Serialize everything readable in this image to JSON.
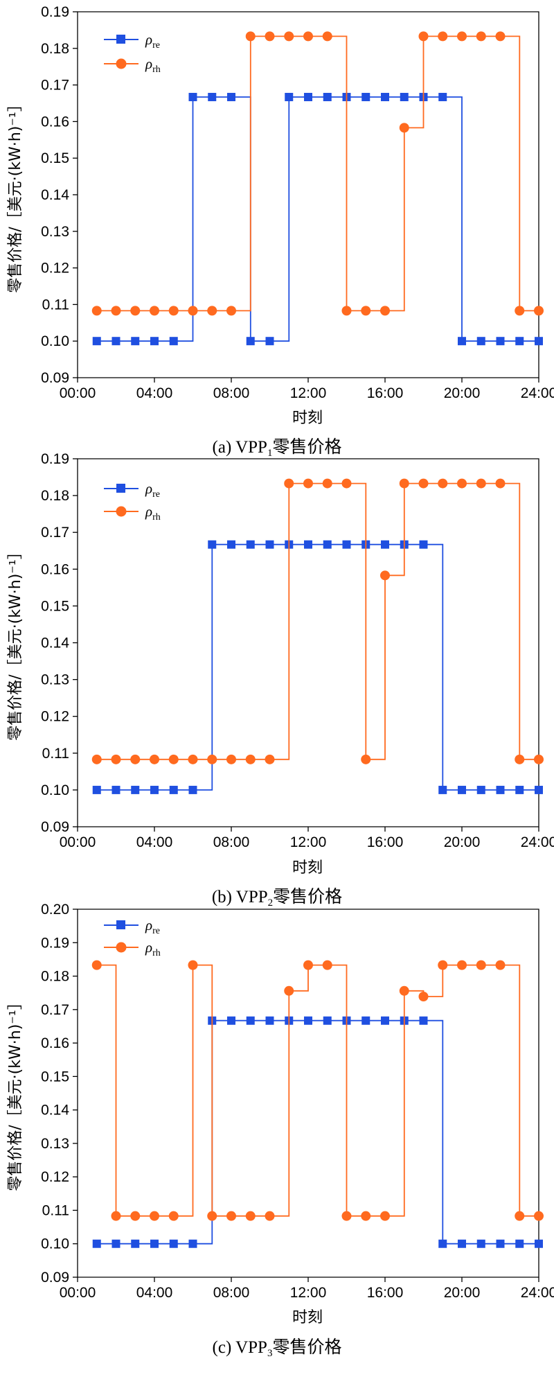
{
  "chart_data": [
    {
      "type": "line",
      "step": true,
      "caption": "(a) VPP",
      "caption_sub": "1",
      "caption_suffix": "零售价格",
      "xlabel": "时刻",
      "ylabel": "零售价格/［美元·(kW·h)⁻¹］",
      "xlim": [
        0,
        24
      ],
      "ylim": [
        0.09,
        0.19
      ],
      "x_ticks": [
        0,
        4,
        8,
        12,
        16,
        20,
        24
      ],
      "x_tick_labels": [
        "00:00",
        "04:00",
        "08:00",
        "12:00",
        "16:00",
        "20:00",
        "24:00"
      ],
      "y_ticks": [
        0.09,
        0.1,
        0.11,
        0.12,
        0.13,
        0.14,
        0.15,
        0.16,
        0.17,
        0.18,
        0.19
      ],
      "y_tick_labels": [
        "0.09",
        "0.10",
        "0.11",
        "0.12",
        "0.13",
        "0.14",
        "0.15",
        "0.16",
        "0.17",
        "0.18",
        "0.19"
      ],
      "x": [
        1,
        2,
        3,
        4,
        5,
        6,
        7,
        8,
        9,
        10,
        11,
        12,
        13,
        14,
        15,
        16,
        17,
        18,
        19,
        20,
        21,
        22,
        23,
        24
      ],
      "series": [
        {
          "name": "ρre",
          "symbol": "ρ",
          "sub": "re",
          "color": "#1f4fe0",
          "marker": "square",
          "values": [
            0.1,
            0.1,
            0.1,
            0.1,
            0.1,
            0.1667,
            0.1667,
            0.1667,
            0.1,
            0.1,
            0.1667,
            0.1667,
            0.1667,
            0.1667,
            0.1667,
            0.1667,
            0.1667,
            0.1667,
            0.1667,
            0.1,
            0.1,
            0.1,
            0.1,
            0.1
          ]
        },
        {
          "name": "ρrh",
          "symbol": "ρ",
          "sub": "rh",
          "color": "#ff6a1f",
          "marker": "circle",
          "values": [
            0.1083,
            0.1083,
            0.1083,
            0.1083,
            0.1083,
            0.1083,
            0.1083,
            0.1083,
            0.1833,
            0.1833,
            0.1833,
            0.1833,
            0.1833,
            0.1083,
            0.1083,
            0.1083,
            0.1583,
            0.1833,
            0.1833,
            0.1833,
            0.1833,
            0.1833,
            0.1083,
            0.1083
          ]
        }
      ]
    },
    {
      "type": "line",
      "step": true,
      "caption": "(b) VPP",
      "caption_sub": "2",
      "caption_suffix": "零售价格",
      "xlabel": "时刻",
      "ylabel": "零售价格/［美元·(kW·h)⁻¹］",
      "xlim": [
        0,
        24
      ],
      "ylim": [
        0.09,
        0.19
      ],
      "x_ticks": [
        0,
        4,
        8,
        12,
        16,
        20,
        24
      ],
      "x_tick_labels": [
        "00:00",
        "04:00",
        "08:00",
        "12:00",
        "16:00",
        "20:00",
        "24:00"
      ],
      "y_ticks": [
        0.09,
        0.1,
        0.11,
        0.12,
        0.13,
        0.14,
        0.15,
        0.16,
        0.17,
        0.18,
        0.19
      ],
      "y_tick_labels": [
        "0.09",
        "0.10",
        "0.11",
        "0.12",
        "0.13",
        "0.14",
        "0.15",
        "0.16",
        "0.17",
        "0.18",
        "0.19"
      ],
      "x": [
        1,
        2,
        3,
        4,
        5,
        6,
        7,
        8,
        9,
        10,
        11,
        12,
        13,
        14,
        15,
        16,
        17,
        18,
        19,
        20,
        21,
        22,
        23,
        24
      ],
      "series": [
        {
          "name": "ρre",
          "symbol": "ρ",
          "sub": "re",
          "color": "#1f4fe0",
          "marker": "square",
          "values": [
            0.1,
            0.1,
            0.1,
            0.1,
            0.1,
            0.1,
            0.1667,
            0.1667,
            0.1667,
            0.1667,
            0.1667,
            0.1667,
            0.1667,
            0.1667,
            0.1667,
            0.1667,
            0.1667,
            0.1667,
            0.1,
            0.1,
            0.1,
            0.1,
            0.1,
            0.1
          ]
        },
        {
          "name": "ρrh",
          "symbol": "ρ",
          "sub": "rh",
          "color": "#ff6a1f",
          "marker": "circle",
          "values": [
            0.1083,
            0.1083,
            0.1083,
            0.1083,
            0.1083,
            0.1083,
            0.1083,
            0.1083,
            0.1083,
            0.1083,
            0.1833,
            0.1833,
            0.1833,
            0.1833,
            0.1083,
            0.1583,
            0.1833,
            0.1833,
            0.1833,
            0.1833,
            0.1833,
            0.1833,
            0.1083,
            0.1083
          ]
        }
      ]
    },
    {
      "type": "line",
      "step": true,
      "caption": "(c) VPP",
      "caption_sub": "3",
      "caption_suffix": "零售价格",
      "xlabel": "时刻",
      "ylabel": "零售价格/［美元·(kW·h)⁻¹］",
      "xlim": [
        0,
        24
      ],
      "ylim": [
        0.09,
        0.2
      ],
      "x_ticks": [
        0,
        4,
        8,
        12,
        16,
        20,
        24
      ],
      "x_tick_labels": [
        "00:00",
        "04:00",
        "08:00",
        "12:00",
        "16:00",
        "20:00",
        "24:00"
      ],
      "y_ticks": [
        0.09,
        0.1,
        0.11,
        0.12,
        0.13,
        0.14,
        0.15,
        0.16,
        0.17,
        0.18,
        0.19,
        0.2
      ],
      "y_tick_labels": [
        "0.09",
        "0.10",
        "0.11",
        "0.12",
        "0.13",
        "0.14",
        "0.15",
        "0.16",
        "0.17",
        "0.18",
        "0.19",
        "0.20"
      ],
      "x": [
        1,
        2,
        3,
        4,
        5,
        6,
        7,
        8,
        9,
        10,
        11,
        12,
        13,
        14,
        15,
        16,
        17,
        18,
        19,
        20,
        21,
        22,
        23,
        24
      ],
      "series": [
        {
          "name": "ρre",
          "symbol": "ρ",
          "sub": "re",
          "color": "#1f4fe0",
          "marker": "square",
          "values": [
            0.1,
            0.1,
            0.1,
            0.1,
            0.1,
            0.1,
            0.1667,
            0.1667,
            0.1667,
            0.1667,
            0.1667,
            0.1667,
            0.1667,
            0.1667,
            0.1667,
            0.1667,
            0.1667,
            0.1667,
            0.1,
            0.1,
            0.1,
            0.1,
            0.1,
            0.1
          ]
        },
        {
          "name": "ρrh",
          "symbol": "ρ",
          "sub": "rh",
          "color": "#ff6a1f",
          "marker": "circle",
          "values": [
            0.1833,
            0.1083,
            0.1083,
            0.1083,
            0.1083,
            0.1833,
            0.1083,
            0.1083,
            0.1083,
            0.1083,
            0.1756,
            0.1833,
            0.1833,
            0.1083,
            0.1083,
            0.1083,
            0.1756,
            0.1739,
            0.1833,
            0.1833,
            0.1833,
            0.1833,
            0.1083,
            0.1083
          ]
        }
      ]
    }
  ]
}
